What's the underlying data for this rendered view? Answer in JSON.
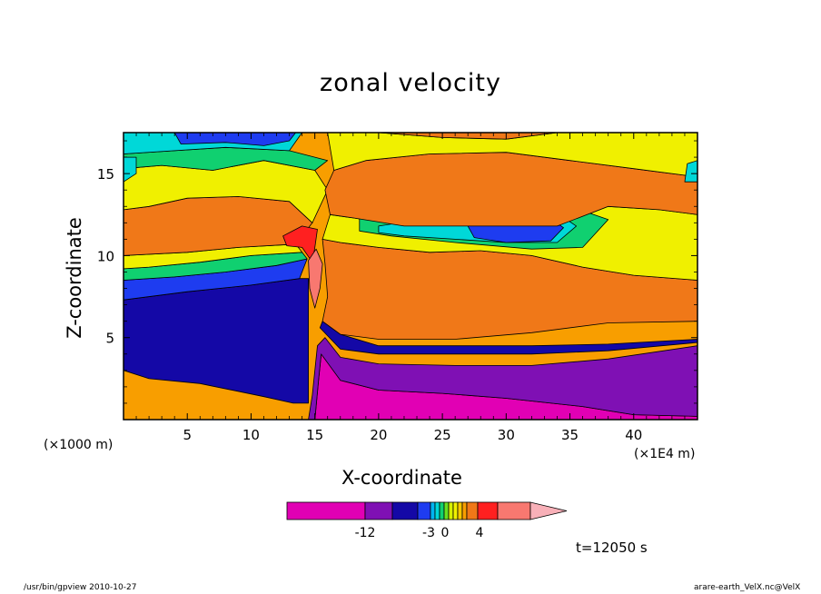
{
  "title": "zonal velocity",
  "xlabel": "X-coordinate",
  "ylabel": "Z-coordinate",
  "x_unit_left": "(×1000 m)",
  "x_unit_right": "(×1E4 m)",
  "time_label": "t=12050 s",
  "footer_left": "/usr/bin/gpview   2010-10-27",
  "footer_right": "arare-earth_VelX.nc@VelX",
  "colors": {
    "c1": "#e100b4",
    "c2": "#7f10b4",
    "c3": "#1408a6",
    "c4": "#1e3cf0",
    "c5": "#00b4f0",
    "c6": "#00d8d8",
    "c7": "#10d070",
    "c8": "#68e020",
    "c9": "#d8f000",
    "c10": "#f0f000",
    "c11": "#f8c800",
    "c12": "#f89e00",
    "c13": "#f07818",
    "c14": "#ff2020",
    "c15": "#f87870",
    "c16": "#f8b0b8"
  },
  "chart_data": {
    "type": "heatmap",
    "title": "zonal velocity",
    "xlabel": "X-coordinate",
    "ylabel": "Z-coordinate",
    "xlim": [
      0,
      45
    ],
    "ylim": [
      0,
      17.5
    ],
    "x_ticks": [
      5,
      10,
      15,
      20,
      25,
      30,
      35,
      40
    ],
    "y_ticks": [
      5,
      10,
      15
    ],
    "colorbar_tick_labels": [
      "-12",
      "-3",
      "0",
      "4"
    ],
    "colorbar_colors": [
      "#e100b4",
      "#7f10b4",
      "#1408a6",
      "#1e3cf0",
      "#00b4f0",
      "#00d8d8",
      "#10d070",
      "#68e020",
      "#d8f000",
      "#f0f000",
      "#f8c800",
      "#f89e00",
      "#f07818",
      "#ff2020",
      "#f87870",
      "#f8b0b8"
    ],
    "regions": [
      {
        "name": "surface-jet",
        "color": "#e100b4",
        "poly": [
          [
            15,
            0
          ],
          [
            45,
            0
          ],
          [
            45,
            0.2
          ],
          [
            40,
            0.3
          ],
          [
            36,
            0.8
          ],
          [
            30,
            1.3
          ],
          [
            25,
            1.6
          ],
          [
            20,
            1.8
          ],
          [
            17,
            2.4
          ],
          [
            15.5,
            4.0
          ],
          [
            15.3,
            2.5
          ]
        ]
      },
      {
        "name": "lower-layer",
        "color": "#7f10b4",
        "poly": [
          [
            0,
            0
          ],
          [
            14.5,
            0
          ],
          [
            14.8,
            1.5
          ],
          [
            15.2,
            4.5
          ],
          [
            15.8,
            5.0
          ],
          [
            17,
            3.8
          ],
          [
            20,
            3.4
          ],
          [
            26,
            3.3
          ],
          [
            32,
            3.3
          ],
          [
            38,
            3.7
          ],
          [
            45,
            4.5
          ],
          [
            45,
            0.2
          ],
          [
            40,
            0.3
          ],
          [
            36,
            0.8
          ],
          [
            30,
            1.3
          ],
          [
            25,
            1.6
          ],
          [
            20,
            1.8
          ],
          [
            17,
            2.4
          ],
          [
            15.5,
            4.0
          ],
          [
            15.3,
            2.5
          ],
          [
            15,
            0
          ]
        ]
      },
      {
        "name": "blue-low",
        "color": "#1408a6",
        "poly": [
          [
            0,
            4.5
          ],
          [
            0,
            7.3
          ],
          [
            5,
            7.8
          ],
          [
            10,
            8.2
          ],
          [
            13.8,
            8.6
          ],
          [
            14.5,
            8.6
          ],
          [
            14.5,
            1.0
          ],
          [
            13.3,
            1.0
          ],
          [
            11,
            1.4
          ],
          [
            6,
            2.2
          ],
          [
            2,
            2.5
          ],
          [
            0,
            3.0
          ]
        ]
      },
      {
        "name": "blue-east",
        "color": "#1408a6",
        "poly": [
          [
            15.4,
            5.6
          ],
          [
            17,
            4.3
          ],
          [
            20,
            4.0
          ],
          [
            26,
            4.0
          ],
          [
            32,
            4.0
          ],
          [
            38,
            4.2
          ],
          [
            45,
            4.7
          ],
          [
            45,
            4.9
          ],
          [
            38,
            4.6
          ],
          [
            32,
            4.5
          ],
          [
            26,
            4.5
          ],
          [
            20,
            4.5
          ],
          [
            17,
            5.2
          ],
          [
            15.6,
            6.0
          ]
        ]
      },
      {
        "name": "bands-west",
        "color": "#1e3cf0",
        "poly": [
          [
            0,
            7.3
          ],
          [
            5,
            7.8
          ],
          [
            10,
            8.2
          ],
          [
            13.8,
            8.6
          ],
          [
            14.4,
            9.8
          ],
          [
            12,
            9.4
          ],
          [
            8,
            9.0
          ],
          [
            4,
            8.7
          ],
          [
            0,
            8.5
          ]
        ]
      },
      {
        "name": "green-west",
        "color": "#10d070",
        "poly": [
          [
            0,
            8.5
          ],
          [
            4,
            8.7
          ],
          [
            8,
            9.0
          ],
          [
            12,
            9.4
          ],
          [
            14.4,
            9.8
          ],
          [
            14.0,
            10.2
          ],
          [
            10,
            10.0
          ],
          [
            6,
            9.6
          ],
          [
            2,
            9.3
          ],
          [
            0,
            9.2
          ]
        ]
      },
      {
        "name": "yellow-west",
        "color": "#f0f000",
        "poly": [
          [
            0,
            9.2
          ],
          [
            2,
            9.3
          ],
          [
            6,
            9.6
          ],
          [
            10,
            10.0
          ],
          [
            14.0,
            10.2
          ],
          [
            13.5,
            10.7
          ],
          [
            9,
            10.5
          ],
          [
            5,
            10.2
          ],
          [
            0,
            10.0
          ]
        ]
      },
      {
        "name": "orange-west",
        "color": "#f07818",
        "poly": [
          [
            0,
            10.0
          ],
          [
            5,
            10.2
          ],
          [
            9,
            10.5
          ],
          [
            13.5,
            10.7
          ],
          [
            14.8,
            12.0
          ],
          [
            13,
            13.3
          ],
          [
            9,
            13.6
          ],
          [
            5,
            13.5
          ],
          [
            2,
            13.0
          ],
          [
            0,
            12.8
          ]
        ]
      },
      {
        "name": "red-center",
        "color": "#ff2020",
        "poly": [
          [
            12.5,
            11.2
          ],
          [
            14,
            11.8
          ],
          [
            15.2,
            11.6
          ],
          [
            15.0,
            10.5
          ],
          [
            14.8,
            9.6
          ],
          [
            14.0,
            10.5
          ],
          [
            12.8,
            10.6
          ]
        ]
      },
      {
        "name": "pink-center",
        "color": "#f87870",
        "poly": [
          [
            14.5,
            9.7
          ],
          [
            15.1,
            10.4
          ],
          [
            15.6,
            9.5
          ],
          [
            15.4,
            8.0
          ],
          [
            15.0,
            6.8
          ],
          [
            14.6,
            8.0
          ]
        ]
      },
      {
        "name": "yellow-upper-west",
        "color": "#f0f000",
        "poly": [
          [
            0,
            12.8
          ],
          [
            2,
            13.0
          ],
          [
            5,
            13.5
          ],
          [
            9,
            13.6
          ],
          [
            13,
            13.3
          ],
          [
            14.8,
            12.0
          ],
          [
            16,
            14.0
          ],
          [
            15,
            15.2
          ],
          [
            11,
            15.8
          ],
          [
            7,
            15.2
          ],
          [
            3,
            15.5
          ],
          [
            0,
            15.3
          ]
        ]
      },
      {
        "name": "green-upper-west",
        "color": "#10d070",
        "poly": [
          [
            0,
            15.3
          ],
          [
            3,
            15.5
          ],
          [
            7,
            15.2
          ],
          [
            11,
            15.8
          ],
          [
            15,
            15.2
          ],
          [
            16,
            15.8
          ],
          [
            13,
            16.4
          ],
          [
            8,
            16.6
          ],
          [
            4,
            16.4
          ],
          [
            0,
            16.2
          ]
        ]
      },
      {
        "name": "top-west-cyan",
        "color": "#00d8d8",
        "poly": [
          [
            0,
            16.2
          ],
          [
            4,
            16.4
          ],
          [
            8,
            16.6
          ],
          [
            13,
            16.4
          ],
          [
            14,
            17.5
          ],
          [
            0,
            17.5
          ]
        ]
      },
      {
        "name": "top-west-blue",
        "color": "#1e3cf0",
        "poly": [
          [
            4,
            17.5
          ],
          [
            4.5,
            16.8
          ],
          [
            8,
            16.9
          ],
          [
            11,
            16.7
          ],
          [
            13,
            17.0
          ],
          [
            13.5,
            17.5
          ]
        ]
      },
      {
        "name": "cyan-dot-west",
        "color": "#00d8d8",
        "poly": [
          [
            0,
            14.5
          ],
          [
            1.0,
            15.0
          ],
          [
            1.0,
            16.0
          ],
          [
            0,
            16.0
          ]
        ]
      },
      {
        "name": "orange-east",
        "color": "#f07818",
        "poly": [
          [
            15.6,
            6.0
          ],
          [
            17,
            5.2
          ],
          [
            20,
            4.9
          ],
          [
            26,
            4.9
          ],
          [
            32,
            5.3
          ],
          [
            38,
            5.9
          ],
          [
            45,
            6.0
          ],
          [
            45,
            8.5
          ],
          [
            40,
            8.8
          ],
          [
            36,
            9.3
          ],
          [
            32,
            10.0
          ],
          [
            28,
            10.3
          ],
          [
            24,
            10.2
          ],
          [
            20,
            10.5
          ],
          [
            17,
            10.8
          ],
          [
            15.6,
            11.0
          ],
          [
            15.8,
            9.5
          ],
          [
            16.0,
            7.5
          ]
        ]
      },
      {
        "name": "yellow-mid-east",
        "color": "#f0f000",
        "poly": [
          [
            15.6,
            11.0
          ],
          [
            17,
            10.8
          ],
          [
            20,
            10.5
          ],
          [
            24,
            10.2
          ],
          [
            28,
            10.3
          ],
          [
            32,
            10.0
          ],
          [
            36,
            9.3
          ],
          [
            40,
            8.8
          ],
          [
            45,
            8.5
          ],
          [
            45,
            12.5
          ],
          [
            42,
            12.8
          ],
          [
            38,
            13.0
          ],
          [
            34,
            11.8
          ],
          [
            28,
            11.8
          ],
          [
            22,
            11.8
          ],
          [
            18,
            12.3
          ],
          [
            16.2,
            12.5
          ]
        ]
      },
      {
        "name": "green-ring",
        "color": "#10d070",
        "poly": [
          [
            18.5,
            12.5
          ],
          [
            24,
            12.8
          ],
          [
            30,
            13.2
          ],
          [
            35,
            13.0
          ],
          [
            38,
            12.2
          ],
          [
            36,
            10.5
          ],
          [
            32,
            10.4
          ],
          [
            26,
            10.8
          ],
          [
            21,
            11.2
          ],
          [
            18.5,
            11.5
          ]
        ]
      },
      {
        "name": "cyan-ring",
        "color": "#00d8d8",
        "poly": [
          [
            20,
            11.8
          ],
          [
            24,
            12.3
          ],
          [
            30,
            12.8
          ],
          [
            34,
            12.6
          ],
          [
            35.5,
            11.8
          ],
          [
            34,
            10.8
          ],
          [
            30,
            10.8
          ],
          [
            26,
            11.0
          ],
          [
            22,
            11.2
          ],
          [
            20,
            11.4
          ]
        ]
      },
      {
        "name": "blue-core",
        "color": "#1e3cf0",
        "poly": [
          [
            27,
            11.8
          ],
          [
            30,
            12.6
          ],
          [
            33,
            12.5
          ],
          [
            34.5,
            11.7
          ],
          [
            33.5,
            10.9
          ],
          [
            30,
            10.8
          ],
          [
            27.5,
            11.1
          ]
        ]
      },
      {
        "name": "orange-upper-east",
        "color": "#f07818",
        "poly": [
          [
            16.2,
            12.5
          ],
          [
            18,
            12.3
          ],
          [
            22,
            11.8
          ],
          [
            28,
            11.8
          ],
          [
            34,
            11.8
          ],
          [
            38,
            13.0
          ],
          [
            42,
            12.8
          ],
          [
            45,
            12.5
          ],
          [
            45,
            14.8
          ],
          [
            40,
            15.3
          ],
          [
            35,
            15.8
          ],
          [
            30,
            16.3
          ],
          [
            24,
            16.2
          ],
          [
            19,
            15.8
          ],
          [
            16.5,
            15.2
          ],
          [
            15.8,
            14.0
          ]
        ]
      },
      {
        "name": "yellow-top-east",
        "color": "#f0f000",
        "poly": [
          [
            16.5,
            15.2
          ],
          [
            19,
            15.8
          ],
          [
            24,
            16.2
          ],
          [
            30,
            16.3
          ],
          [
            35,
            15.8
          ],
          [
            40,
            15.3
          ],
          [
            45,
            14.8
          ],
          [
            45,
            17.5
          ],
          [
            34,
            17.5
          ],
          [
            30,
            17.1
          ],
          [
            25,
            17.2
          ],
          [
            20,
            17.5
          ],
          [
            16.0,
            17.5
          ]
        ]
      },
      {
        "name": "cyan-dot-east",
        "color": "#00d8d8",
        "poly": [
          [
            44,
            14.5
          ],
          [
            45,
            14.5
          ],
          [
            45,
            15.8
          ],
          [
            44.2,
            15.6
          ]
        ]
      },
      {
        "name": "orange-top-east",
        "color": "#f07818",
        "poly": [
          [
            20,
            17.5
          ],
          [
            25,
            17.2
          ],
          [
            30,
            17.1
          ],
          [
            34,
            17.5
          ]
        ]
      }
    ]
  }
}
